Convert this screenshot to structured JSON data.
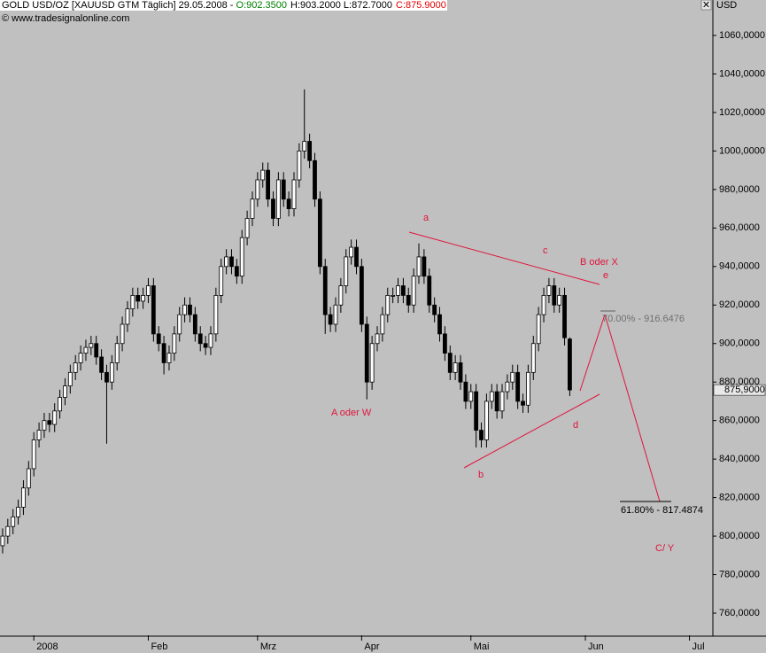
{
  "chart_data": {
    "type": "candlestick",
    "header": {
      "symbol": "GOLD USD/OZ [XAUUSD GTM  Täglich] 29.05.2008 - ",
      "open": "O:902.3500",
      "high_low": "H:903.2000 L:872.7000",
      "close": "C:875.9000"
    },
    "copyright": "© www.tradesignalonline.com",
    "currency": "USD",
    "last_price_label": "875,9000",
    "categories": [
      null,
      null,
      null,
      null,
      null,
      null,
      "2008",
      null,
      null,
      null,
      null,
      null,
      null,
      null,
      null,
      null,
      null,
      null,
      null,
      null,
      null,
      null,
      null,
      null,
      null,
      null,
      null,
      null,
      "Feb",
      null,
      null,
      null,
      null,
      null,
      null,
      null,
      null,
      null,
      null,
      null,
      null,
      null,
      null,
      null,
      null,
      null,
      null,
      null,
      null,
      "Mrz",
      null,
      null,
      null,
      null,
      null,
      null,
      null,
      null,
      null,
      null,
      null,
      null,
      null,
      null,
      null,
      null,
      null,
      null,
      null,
      "Apr",
      null,
      null,
      null,
      null,
      null,
      null,
      null,
      null,
      null,
      null,
      null,
      null,
      null,
      null,
      null,
      null,
      null,
      null,
      null,
      null,
      "Mai",
      null,
      null,
      null,
      null,
      null,
      null,
      null,
      null,
      null,
      null,
      null,
      null,
      null,
      null,
      null,
      null,
      null,
      null,
      null,
      null,
      null,
      "Jun",
      null,
      null,
      null,
      null,
      null,
      null,
      null,
      null,
      null,
      null,
      null,
      null,
      null,
      null,
      null,
      null,
      null,
      null,
      null,
      "Jul",
      null,
      null,
      null,
      null
    ],
    "open": [
      795,
      800,
      805,
      810,
      815,
      825,
      835,
      850,
      855,
      860,
      858,
      865,
      872,
      878,
      885,
      890,
      895,
      898,
      900,
      893,
      885,
      880,
      890,
      900,
      910,
      918,
      925,
      922,
      925,
      930,
      905,
      900,
      890,
      895,
      905,
      915,
      920,
      915,
      905,
      900,
      898,
      905,
      925,
      940,
      945,
      940,
      935,
      955,
      965,
      975,
      985,
      990,
      975,
      965,
      985,
      975,
      970,
      985,
      1000,
      1005,
      995,
      975,
      940,
      915,
      910,
      920,
      930,
      945,
      950,
      940,
      910,
      880,
      900,
      905,
      915,
      925,
      925,
      930,
      925,
      920,
      935,
      945,
      935,
      920,
      915,
      905,
      895,
      885,
      890,
      880,
      870,
      875,
      855,
      850,
      870,
      875,
      865,
      875,
      880,
      885,
      870,
      868,
      885,
      900,
      915,
      925,
      930,
      920,
      925,
      902.35,
      null,
      null,
      null,
      null,
      null,
      null,
      null,
      null,
      null,
      null,
      null,
      null,
      null,
      null,
      null,
      null,
      null,
      null,
      null,
      null,
      null,
      null,
      null,
      null,
      null,
      null,
      null
    ],
    "high": [
      804,
      809,
      814,
      819,
      829,
      839,
      854,
      859,
      864,
      864,
      869,
      876,
      882,
      889,
      894,
      899,
      902,
      904,
      904,
      897,
      889,
      894,
      904,
      914,
      922,
      929,
      929,
      929,
      934,
      934,
      909,
      904,
      899,
      909,
      919,
      924,
      924,
      919,
      909,
      904,
      909,
      929,
      944,
      949,
      949,
      944,
      959,
      969,
      979,
      989,
      994,
      994,
      979,
      989,
      989,
      979,
      989,
      1004,
      1032,
      1009,
      999,
      979,
      944,
      919,
      924,
      934,
      949,
      954,
      954,
      944,
      914,
      904,
      909,
      919,
      929,
      929,
      934,
      934,
      929,
      939,
      952,
      949,
      939,
      924,
      919,
      909,
      899,
      894,
      894,
      884,
      879,
      879,
      859,
      874,
      879,
      879,
      879,
      884,
      889,
      889,
      874,
      889,
      904,
      919,
      929,
      934,
      934,
      929,
      929,
      903.2,
      null,
      null,
      null,
      null,
      null,
      null,
      null,
      null,
      null,
      null,
      null,
      null,
      null,
      null,
      null,
      null,
      null,
      null,
      null,
      null,
      null,
      null,
      null,
      null,
      null,
      null,
      null
    ],
    "low": [
      791,
      796,
      801,
      806,
      811,
      821,
      831,
      846,
      851,
      854,
      854,
      861,
      868,
      874,
      881,
      886,
      891,
      894,
      889,
      881,
      848,
      876,
      886,
      896,
      906,
      914,
      918,
      918,
      921,
      901,
      896,
      884,
      886,
      891,
      901,
      911,
      911,
      901,
      896,
      894,
      894,
      901,
      921,
      936,
      936,
      931,
      931,
      951,
      961,
      971,
      981,
      971,
      961,
      961,
      971,
      966,
      966,
      981,
      996,
      991,
      971,
      936,
      905,
      906,
      906,
      916,
      926,
      941,
      936,
      906,
      871,
      876,
      896,
      901,
      911,
      921,
      921,
      921,
      916,
      916,
      931,
      931,
      916,
      911,
      901,
      891,
      881,
      881,
      876,
      866,
      866,
      846,
      846,
      846,
      866,
      861,
      861,
      871,
      876,
      866,
      864,
      864,
      881,
      896,
      911,
      921,
      916,
      916,
      899,
      872.7,
      null,
      null,
      null,
      null,
      null,
      null,
      null,
      null,
      null,
      null,
      null,
      null,
      null,
      null,
      null,
      null,
      null,
      null,
      null,
      null,
      null,
      null,
      null,
      null,
      null,
      null,
      null
    ],
    "close": [
      800,
      805,
      810,
      815,
      825,
      835,
      850,
      855,
      860,
      858,
      865,
      872,
      878,
      885,
      890,
      895,
      898,
      900,
      893,
      885,
      880,
      890,
      900,
      910,
      918,
      925,
      922,
      925,
      930,
      905,
      900,
      890,
      895,
      905,
      915,
      920,
      915,
      905,
      900,
      898,
      905,
      925,
      940,
      945,
      940,
      935,
      955,
      965,
      975,
      985,
      990,
      975,
      965,
      985,
      975,
      970,
      985,
      1000,
      1005,
      995,
      975,
      940,
      915,
      910,
      920,
      930,
      945,
      950,
      940,
      910,
      880,
      900,
      905,
      915,
      925,
      925,
      930,
      925,
      920,
      935,
      945,
      935,
      920,
      915,
      905,
      895,
      885,
      890,
      880,
      870,
      875,
      855,
      850,
      870,
      875,
      865,
      875,
      880,
      885,
      870,
      868,
      885,
      900,
      915,
      925,
      930,
      920,
      925,
      903,
      875.9,
      null,
      null,
      null,
      null,
      null,
      null,
      null,
      null,
      null,
      null,
      null,
      null,
      null,
      null,
      null,
      null,
      null,
      null,
      null,
      null,
      null,
      null,
      null,
      null,
      null,
      null,
      null
    ],
    "up_color": "#ffffff",
    "down_color": "#000000",
    "ylim": [
      748.5,
      1078.4
    ],
    "yticks": [
      {
        "value": 760,
        "label": "760,0000"
      },
      {
        "value": 780,
        "label": "780,0000"
      },
      {
        "value": 800,
        "label": "800,0000"
      },
      {
        "value": 820,
        "label": "820,0000"
      },
      {
        "value": 840,
        "label": "840,0000"
      },
      {
        "value": 860,
        "label": "860,0000"
      },
      {
        "value": 880,
        "label": "880,0000"
      },
      {
        "value": 900,
        "label": "900,0000"
      },
      {
        "value": 920,
        "label": "920,0000"
      },
      {
        "value": 940,
        "label": "940,0000"
      },
      {
        "value": 960,
        "label": "960,0000"
      },
      {
        "value": 980,
        "label": "980,0000"
      },
      {
        "value": 1000,
        "label": "1000,0000"
      },
      {
        "value": 1020,
        "label": "1020,0000"
      },
      {
        "value": 1040,
        "label": "1040,0000"
      },
      {
        "value": 1060,
        "label": "1060,0000"
      }
    ],
    "annotations": [
      "a",
      "b",
      "c",
      "d",
      "e",
      "A oder W",
      "B oder X",
      "C/ Y",
      "70.00% - 916.6476",
      "61.80% - 817.4874"
    ]
  }
}
